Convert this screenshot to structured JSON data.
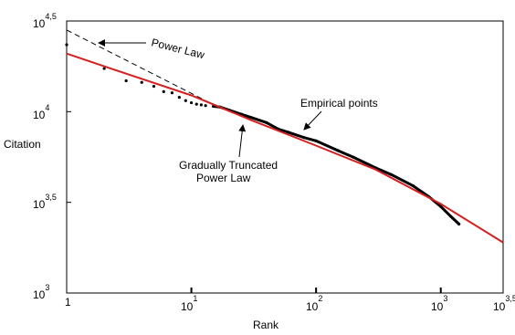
{
  "chart_data": {
    "type": "scatter",
    "title": "",
    "xlabel": "Rank",
    "ylabel": "Citation",
    "xscale": "log",
    "yscale": "log",
    "xlim": [
      1,
      3162
    ],
    "ylim": [
      1000,
      31623
    ],
    "grid": false,
    "x_ticks": [
      {
        "base": "1",
        "exp": ""
      },
      {
        "base": "10",
        "exp": "1"
      },
      {
        "base": "10",
        "exp": "2"
      },
      {
        "base": "10",
        "exp": "3"
      },
      {
        "base": "10",
        "exp": "3,5"
      }
    ],
    "y_ticks": [
      {
        "base": "10",
        "exp": "3"
      },
      {
        "base": "10",
        "exp": "3,5"
      },
      {
        "base": "10",
        "exp": "4"
      },
      {
        "base": "10",
        "exp": "4,5"
      }
    ],
    "series": [
      {
        "name": "Empirical points",
        "kind": "scatter",
        "color": "#000000",
        "points": [
          [
            1,
            23400
          ],
          [
            2,
            17300
          ],
          [
            3,
            14800
          ],
          [
            4,
            14500
          ],
          [
            5,
            13800
          ],
          [
            6,
            12900
          ],
          [
            7,
            12700
          ],
          [
            8,
            12000
          ],
          [
            9,
            11500
          ],
          [
            10,
            11200
          ],
          [
            11,
            11000
          ],
          [
            12,
            10900
          ],
          [
            13,
            10800
          ],
          [
            15,
            10700
          ],
          [
            17,
            10600
          ],
          [
            20,
            10200
          ],
          [
            25,
            9700
          ],
          [
            30,
            9300
          ],
          [
            40,
            8700
          ],
          [
            50,
            8000
          ],
          [
            60,
            7700
          ],
          [
            80,
            7200
          ],
          [
            100,
            6900
          ],
          [
            150,
            6100
          ],
          [
            200,
            5600
          ],
          [
            300,
            4900
          ],
          [
            400,
            4500
          ],
          [
            600,
            3900
          ],
          [
            800,
            3400
          ],
          [
            1000,
            3000
          ],
          [
            1200,
            2650
          ],
          [
            1400,
            2400
          ]
        ]
      },
      {
        "name": "Power Law",
        "kind": "line",
        "style": "dashed",
        "color": "#000000",
        "points": [
          [
            1,
            28200
          ],
          [
            16,
            10700
          ]
        ]
      },
      {
        "name": "Gradually Truncated Power Law",
        "kind": "line",
        "style": "solid",
        "color": "#d42020",
        "points": [
          [
            1,
            20900
          ],
          [
            3,
            16200
          ],
          [
            10,
            12300
          ],
          [
            30,
            9000
          ],
          [
            100,
            6500
          ],
          [
            300,
            4800
          ],
          [
            1000,
            3100
          ],
          [
            3162,
            1900
          ]
        ]
      }
    ],
    "annotations": [
      {
        "text": "Power Law",
        "target": "Power Law"
      },
      {
        "text": "Empirical points",
        "target": "Empirical points"
      },
      {
        "text": "Gradually Truncated",
        "target": "Gradually Truncated Power Law"
      },
      {
        "text": "Power Law",
        "target": "Gradually Truncated Power Law"
      }
    ]
  }
}
